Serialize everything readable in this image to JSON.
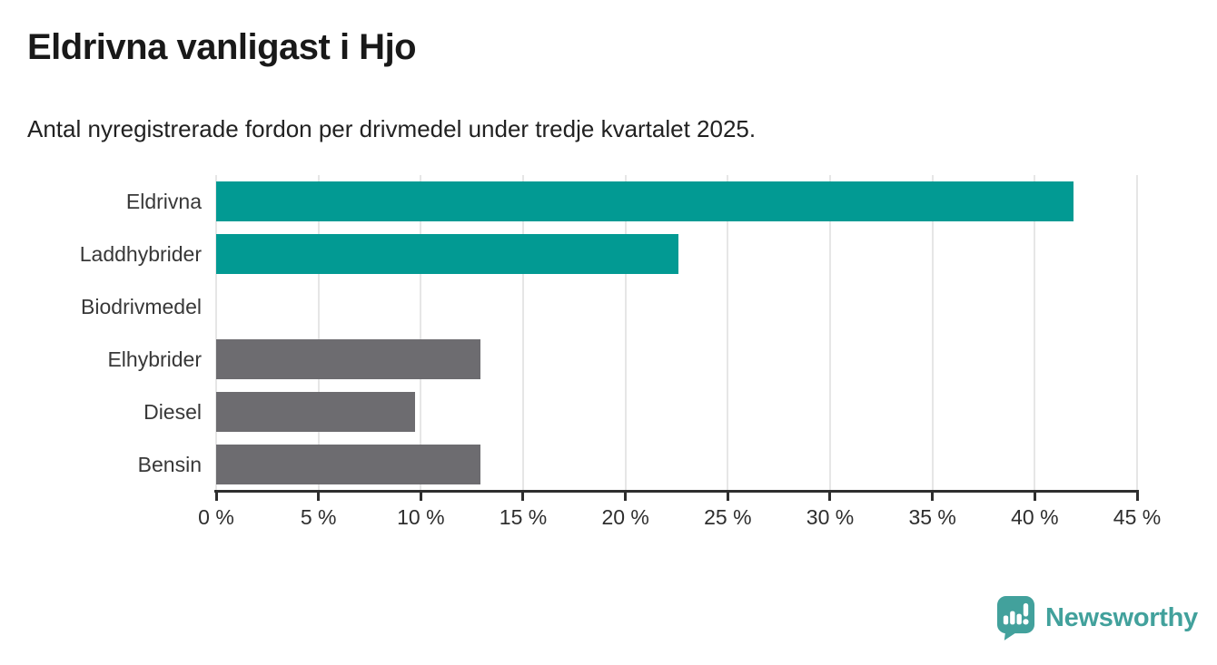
{
  "title": "Eldrivna vanligast i Hjo",
  "subtitle": "Antal nyregistrerade fordon per drivmedel under tredje kvartalet 2025.",
  "chart_data": {
    "type": "bar",
    "orientation": "horizontal",
    "categories": [
      "Eldrivna",
      "Laddhybrider",
      "Biodrivmedel",
      "Elhybrider",
      "Diesel",
      "Bensin"
    ],
    "values": [
      41.9,
      22.6,
      0,
      12.9,
      9.7,
      12.9
    ],
    "unit": "%",
    "bar_colors": [
      "#029a93",
      "#029a93",
      "#029a93",
      "#6d6c70",
      "#6d6c70",
      "#6d6c70"
    ],
    "title": "Eldrivna vanligast i Hjo",
    "subtitle": "Antal nyregistrerade fordon per drivmedel under tredje kvartalet 2025.",
    "xlabel": "",
    "ylabel": "",
    "xlim": [
      0,
      45
    ],
    "x_ticks": [
      0,
      5,
      10,
      15,
      20,
      25,
      30,
      35,
      40,
      45
    ],
    "x_tick_labels": [
      "0 %",
      "5 %",
      "10 %",
      "15 %",
      "20 %",
      "25 %",
      "30 %",
      "35 %",
      "40 %",
      "45 %"
    ],
    "grid": "vertical",
    "legend": "none"
  },
  "branding": {
    "logo_text": "Newsworthy",
    "logo_icon": "newsworthy-speech-bubble-chart-icon",
    "logo_color": "#42a19c"
  },
  "colors": {
    "accent_teal": "#029a93",
    "neutral_gray": "#6d6c70",
    "axis": "#2e2e2e",
    "gridline": "#e6e6e6",
    "text_dark": "#191919",
    "background": "#ffffff"
  }
}
